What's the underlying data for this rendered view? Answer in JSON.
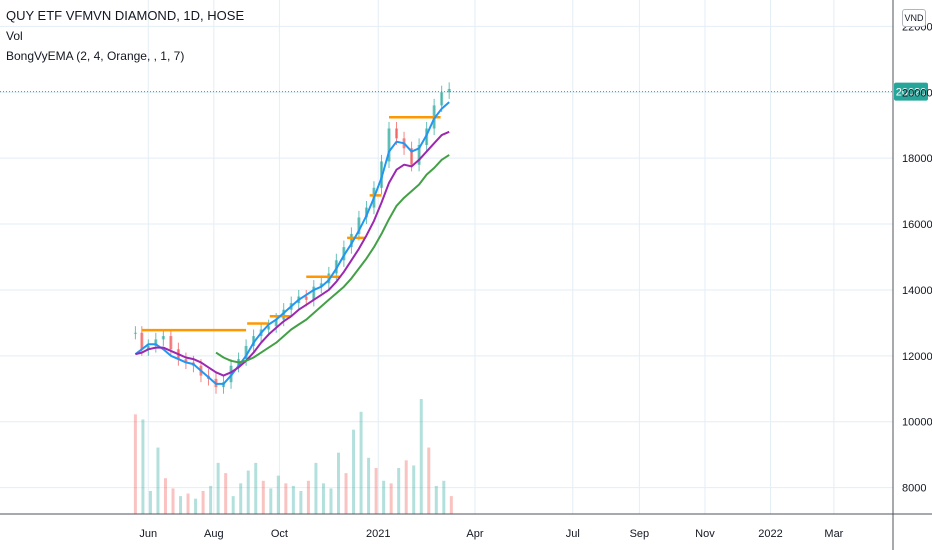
{
  "header": {
    "title": "QUY ETF VFMVN DIAMOND, 1D, HOSE",
    "volume_label": "Vol",
    "indicator_label": "BongVyEMA (2, 4, Orange, , 1, 7)",
    "currency": "VND"
  },
  "chart_data": {
    "type": "line",
    "title": "QUY ETF VFMVN DIAMOND, 1D, HOSE",
    "ylim": [
      7200,
      22800
    ],
    "y_ticks": [
      "22000",
      "20000",
      "18000",
      "16000",
      "14000",
      "12000",
      "10000",
      "8000"
    ],
    "y_tick_values": [
      22000,
      20000,
      18000,
      16000,
      14000,
      12000,
      10000,
      8000
    ],
    "x_ticks": [
      "Jun",
      "Aug",
      "Oct",
      "2021",
      "Apr",
      "Jul",
      "Sep",
      "Nov",
      "2022",
      "Mar"
    ],
    "x_tick_dates": [
      "2020-06-01",
      "2020-08-01",
      "2020-10-01",
      "2021-01-01",
      "2021-04-01",
      "2021-07-01",
      "2021-09-01",
      "2021-11-01",
      "2022-01-01",
      "2022-03-01"
    ],
    "x_range": [
      "2020-01-15",
      "2022-04-25"
    ],
    "last_price": "20020",
    "last_price_value": 20020,
    "grid": true,
    "colors": {
      "ema_fast": "#2196f3",
      "ema_mid": "#9c27b0",
      "ema_slow": "#43a047",
      "levels": "#ff9800",
      "up": "#26a69a",
      "down": "#ef5350",
      "price_line": "#26a69a",
      "price_badge": "#26a69a"
    },
    "price_series": {
      "dates": [
        "2020-05-20",
        "2020-05-26",
        "2020-06-01",
        "2020-06-08",
        "2020-06-15",
        "2020-06-22",
        "2020-06-29",
        "2020-07-06",
        "2020-07-13",
        "2020-07-20",
        "2020-07-27",
        "2020-08-03",
        "2020-08-10",
        "2020-08-17",
        "2020-08-24",
        "2020-08-31",
        "2020-09-07",
        "2020-09-14",
        "2020-09-21",
        "2020-09-28",
        "2020-10-05",
        "2020-10-12",
        "2020-10-19",
        "2020-10-26",
        "2020-11-02",
        "2020-11-09",
        "2020-11-16",
        "2020-11-23",
        "2020-11-30",
        "2020-12-07",
        "2020-12-14",
        "2020-12-21",
        "2020-12-28",
        "2021-01-04",
        "2021-01-11",
        "2021-01-18",
        "2021-01-25",
        "2021-02-01",
        "2021-02-08",
        "2021-02-15",
        "2021-02-22",
        "2021-03-01",
        "2021-03-08"
      ],
      "values": [
        12700,
        12200,
        12300,
        12500,
        12600,
        12200,
        11900,
        11800,
        11700,
        11400,
        11300,
        11050,
        11200,
        11700,
        11900,
        12300,
        12600,
        12800,
        12900,
        13100,
        13400,
        13600,
        13800,
        13700,
        14100,
        14200,
        14500,
        14900,
        15300,
        15700,
        16200,
        16500,
        17100,
        17900,
        18900,
        18600,
        18300,
        17800,
        18400,
        18900,
        19600,
        20000,
        20100
      ]
    },
    "series": [
      {
        "values": [
          12050,
          12200,
          12350,
          12350,
          12200,
          12000,
          11900,
          11800,
          11750,
          11550,
          11350,
          11150,
          11150,
          11400,
          11700,
          12000,
          12400,
          12700,
          12950,
          13100,
          13300,
          13500,
          13700,
          13850,
          14000,
          14100,
          14300,
          14650,
          15050,
          15400,
          15800,
          16250,
          16800,
          17400,
          18200,
          18500,
          18450,
          18200,
          18300,
          18700,
          19200,
          19500,
          19700
        ]
      },
      {
        "values": [
          12050,
          12100,
          12200,
          12250,
          12250,
          12150,
          12050,
          11950,
          11900,
          11800,
          11650,
          11500,
          11400,
          11500,
          11650,
          11850,
          12100,
          12400,
          12650,
          12850,
          13050,
          13200,
          13400,
          13550,
          13700,
          13850,
          14000,
          14250,
          14550,
          14900,
          15250,
          15650,
          16100,
          16650,
          17250,
          17650,
          17800,
          17750,
          17950,
          18200,
          18450,
          18700,
          18800
        ]
      },
      {
        "values": [
          null,
          null,
          null,
          null,
          null,
          null,
          null,
          null,
          null,
          null,
          null,
          12100,
          11950,
          11850,
          11800,
          11850,
          11950,
          12100,
          12250,
          12400,
          12600,
          12800,
          12950,
          13100,
          13300,
          13500,
          13700,
          13900,
          14100,
          14350,
          14650,
          14950,
          15300,
          15700,
          16150,
          16550,
          16800,
          17000,
          17200,
          17500,
          17700,
          17950,
          18100
        ]
      }
    ],
    "levels": [
      {
        "start": "2020-05-26",
        "end": "2020-08-31",
        "value": 12780
      },
      {
        "start": "2020-09-01",
        "end": "2020-09-21",
        "value": 12980
      },
      {
        "start": "2020-09-22",
        "end": "2020-10-12",
        "value": 13200
      },
      {
        "start": "2020-10-26",
        "end": "2020-11-26",
        "value": 14400
      },
      {
        "start": "2020-12-03",
        "end": "2020-12-20",
        "value": 15580
      },
      {
        "start": "2020-12-24",
        "end": "2021-01-04",
        "value": 16870
      },
      {
        "start": "2021-01-11",
        "end": "2021-02-28",
        "value": 19240
      }
    ],
    "volume": {
      "dates": [
        "2020-05-20",
        "2020-05-27",
        "2020-06-03",
        "2020-06-10",
        "2020-06-17",
        "2020-06-24",
        "2020-07-01",
        "2020-07-08",
        "2020-07-15",
        "2020-07-22",
        "2020-07-29",
        "2020-08-05",
        "2020-08-12",
        "2020-08-19",
        "2020-08-26",
        "2020-09-02",
        "2020-09-09",
        "2020-09-16",
        "2020-09-23",
        "2020-09-30",
        "2020-10-07",
        "2020-10-14",
        "2020-10-21",
        "2020-10-28",
        "2020-11-04",
        "2020-11-11",
        "2020-11-18",
        "2020-11-25",
        "2020-12-02",
        "2020-12-09",
        "2020-12-16",
        "2020-12-23",
        "2020-12-30",
        "2021-01-06",
        "2021-01-13",
        "2021-01-20",
        "2021-01-27",
        "2021-02-03",
        "2021-02-10",
        "2021-02-17",
        "2021-02-24",
        "2021-03-03",
        "2021-03-10"
      ],
      "values": [
        3.9,
        3.7,
        0.9,
        2.6,
        1.4,
        1.0,
        0.7,
        0.8,
        0.6,
        0.9,
        1.1,
        2.0,
        1.6,
        0.7,
        1.2,
        1.7,
        2.0,
        1.3,
        1.0,
        1.5,
        1.2,
        1.1,
        0.9,
        1.3,
        2.0,
        1.2,
        1.0,
        2.4,
        1.6,
        3.3,
        4.0,
        2.2,
        1.8,
        1.3,
        1.2,
        1.8,
        2.1,
        1.9,
        4.5,
        2.6,
        1.1,
        1.3,
        0.7
      ],
      "up": [
        false,
        true,
        true,
        true,
        false,
        false,
        true,
        false,
        true,
        false,
        true,
        true,
        false,
        true,
        true,
        true,
        true,
        false,
        true,
        true,
        false,
        true,
        true,
        false,
        true,
        true,
        true,
        true,
        false,
        true,
        true,
        true,
        false,
        true,
        false,
        true,
        false,
        true,
        true,
        false,
        true,
        true,
        false
      ]
    }
  }
}
